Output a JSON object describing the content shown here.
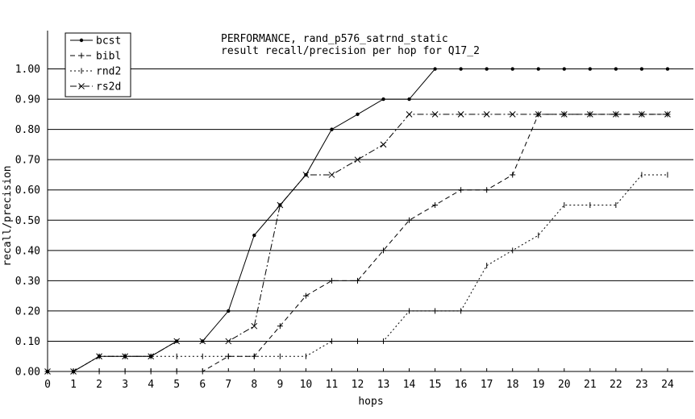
{
  "chart_data": {
    "type": "line",
    "title": "PERFORMANCE, rand_p576_satrnd_static",
    "subtitle": "result recall/precision per hop for Q17_2",
    "xlabel": "hops",
    "ylabel": "recall/precision",
    "xlim": [
      0,
      25
    ],
    "ylim": [
      0,
      1.1
    ],
    "x_ticks": [
      "0",
      "1",
      "2",
      "3",
      "4",
      "5",
      "6",
      "7",
      "8",
      "9",
      "10",
      "11",
      "12",
      "13",
      "14",
      "15",
      "16",
      "17",
      "18",
      "19",
      "20",
      "21",
      "22",
      "23",
      "24"
    ],
    "y_ticks": [
      "0.00",
      "0.10",
      "0.20",
      "0.30",
      "0.40",
      "0.50",
      "0.60",
      "0.70",
      "0.80",
      "0.90",
      "1.00"
    ],
    "grid": "horizontal",
    "legend_position": "top-left",
    "x": [
      0,
      1,
      2,
      3,
      4,
      5,
      6,
      7,
      8,
      9,
      10,
      11,
      12,
      13,
      14,
      15,
      16,
      17,
      18,
      19,
      20,
      21,
      22,
      23,
      24
    ],
    "series": [
      {
        "name": "bcst",
        "style": "solid",
        "marker": "dot",
        "values": [
          0,
          0,
          0.05,
          0.05,
          0.05,
          0.1,
          0.1,
          0.2,
          0.45,
          0.55,
          0.65,
          0.8,
          0.85,
          0.9,
          0.9,
          1.0,
          1.0,
          1.0,
          1.0,
          1.0,
          1.0,
          1.0,
          1.0,
          1.0,
          1.0
        ]
      },
      {
        "name": "bibl",
        "style": "dashed",
        "marker": "plus",
        "values": [
          0,
          0,
          0,
          0,
          0,
          0,
          0,
          0.05,
          0.05,
          0.15,
          0.25,
          0.3,
          0.3,
          0.4,
          0.5,
          0.55,
          0.6,
          0.6,
          0.65,
          0.85,
          0.85,
          0.85,
          0.85,
          0.85,
          0.85
        ]
      },
      {
        "name": "rnd2",
        "style": "dotted",
        "marker": "tick",
        "values": [
          0,
          0,
          0.05,
          0.05,
          0.05,
          0.05,
          0.05,
          0.05,
          0.05,
          0.05,
          0.05,
          0.1,
          0.1,
          0.1,
          0.2,
          0.2,
          0.2,
          0.35,
          0.4,
          0.45,
          0.55,
          0.55,
          0.55,
          0.65,
          0.65
        ]
      },
      {
        "name": "rs2d",
        "style": "dashdot",
        "marker": "x",
        "values": [
          0,
          0,
          0.05,
          0.05,
          0.05,
          0.1,
          0.1,
          0.1,
          0.15,
          0.55,
          0.65,
          0.65,
          0.7,
          0.75,
          0.85,
          0.85,
          0.85,
          0.85,
          0.85,
          0.85,
          0.85,
          0.85,
          0.85,
          0.85,
          0.85
        ]
      }
    ]
  }
}
